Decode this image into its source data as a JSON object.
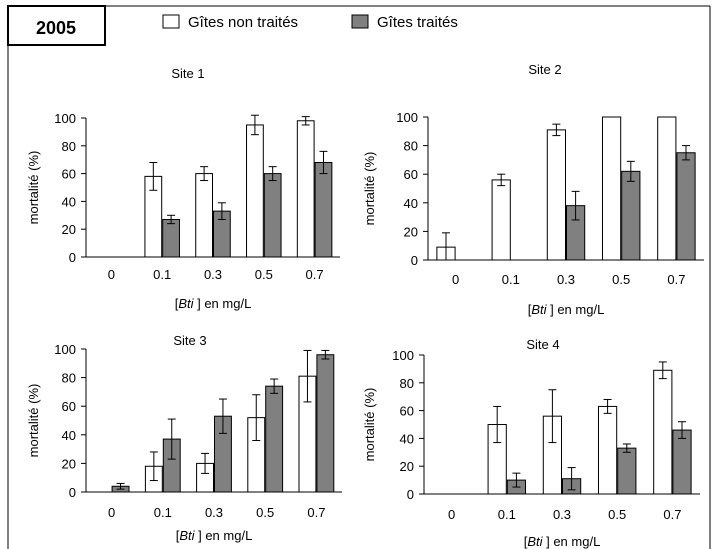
{
  "year_label": "2005",
  "legend": {
    "untreated": "Gîtes non traités",
    "treated": "Gîtes traités"
  },
  "colors": {
    "untreated_fill": "#ffffff",
    "treated_fill": "#808080",
    "stroke": "#000000"
  },
  "chart_data": [
    {
      "type": "bar",
      "title": "Site 1",
      "xlabel_prefix": "[",
      "xlabel_italic": "Bti",
      "xlabel_suffix": " ] en mg/L",
      "ylabel": "mortalité (%)",
      "categories": [
        "0",
        "0.1",
        "0.3",
        "0.5",
        "0.7"
      ],
      "ylim": [
        0,
        100
      ],
      "yticks": [
        "0",
        "20",
        "40",
        "60",
        "80",
        "100"
      ],
      "series": [
        {
          "name": "Gîtes non traités",
          "values": [
            0,
            58,
            60,
            95,
            98
          ],
          "errors": [
            0,
            10,
            5,
            7,
            3
          ]
        },
        {
          "name": "Gîtes traités",
          "values": [
            0,
            27,
            33,
            60,
            68
          ],
          "errors": [
            0,
            3,
            6,
            5,
            8
          ]
        }
      ]
    },
    {
      "type": "bar",
      "title": "Site 2",
      "xlabel_prefix": "[",
      "xlabel_italic": "Bti",
      "xlabel_suffix": " ] en mg/L",
      "ylabel": "mortalité (%)",
      "categories": [
        "0",
        "0.1",
        "0.3",
        "0.5",
        "0.7"
      ],
      "ylim": [
        0,
        100
      ],
      "yticks": [
        "0",
        "20",
        "40",
        "60",
        "80",
        "100"
      ],
      "series": [
        {
          "name": "Gîtes non traités",
          "values": [
            9,
            56,
            91,
            100,
            100
          ],
          "errors": [
            10,
            4,
            4,
            0,
            0
          ]
        },
        {
          "name": "Gîtes traités",
          "values": [
            0,
            0,
            38,
            62,
            75
          ],
          "errors": [
            0,
            0,
            10,
            7,
            5
          ]
        }
      ]
    },
    {
      "type": "bar",
      "title": "Site 3",
      "xlabel_prefix": "[",
      "xlabel_italic": "Bti",
      "xlabel_suffix": " ] en mg/L",
      "ylabel": "mortalité (%)",
      "categories": [
        "0",
        "0.1",
        "0.3",
        "0.5",
        "0.7"
      ],
      "ylim": [
        0,
        100
      ],
      "yticks": [
        "0",
        "20",
        "40",
        "60",
        "80",
        "100"
      ],
      "series": [
        {
          "name": "Gîtes non traités",
          "values": [
            0,
            18,
            20,
            52,
            81
          ],
          "errors": [
            0,
            10,
            7,
            16,
            18
          ]
        },
        {
          "name": "Gîtes traités",
          "values": [
            4,
            37,
            53,
            74,
            96
          ],
          "errors": [
            2,
            14,
            12,
            5,
            3
          ]
        }
      ]
    },
    {
      "type": "bar",
      "title": "Site 4",
      "xlabel_prefix": "[",
      "xlabel_italic": "Bti",
      "xlabel_suffix": " ] en mg/L",
      "ylabel": "mortalité (%)",
      "categories": [
        "0",
        "0.1",
        "0.3",
        "0.5",
        "0.7"
      ],
      "ylim": [
        0,
        100
      ],
      "yticks": [
        "0",
        "20",
        "40",
        "60",
        "80",
        "100"
      ],
      "series": [
        {
          "name": "Gîtes non traités",
          "values": [
            0,
            50,
            56,
            63,
            89
          ],
          "errors": [
            0,
            13,
            19,
            5,
            6
          ]
        },
        {
          "name": "Gîtes traités",
          "values": [
            0,
            10,
            11,
            33,
            46
          ],
          "errors": [
            0,
            5,
            8,
            3,
            6
          ]
        }
      ]
    }
  ]
}
